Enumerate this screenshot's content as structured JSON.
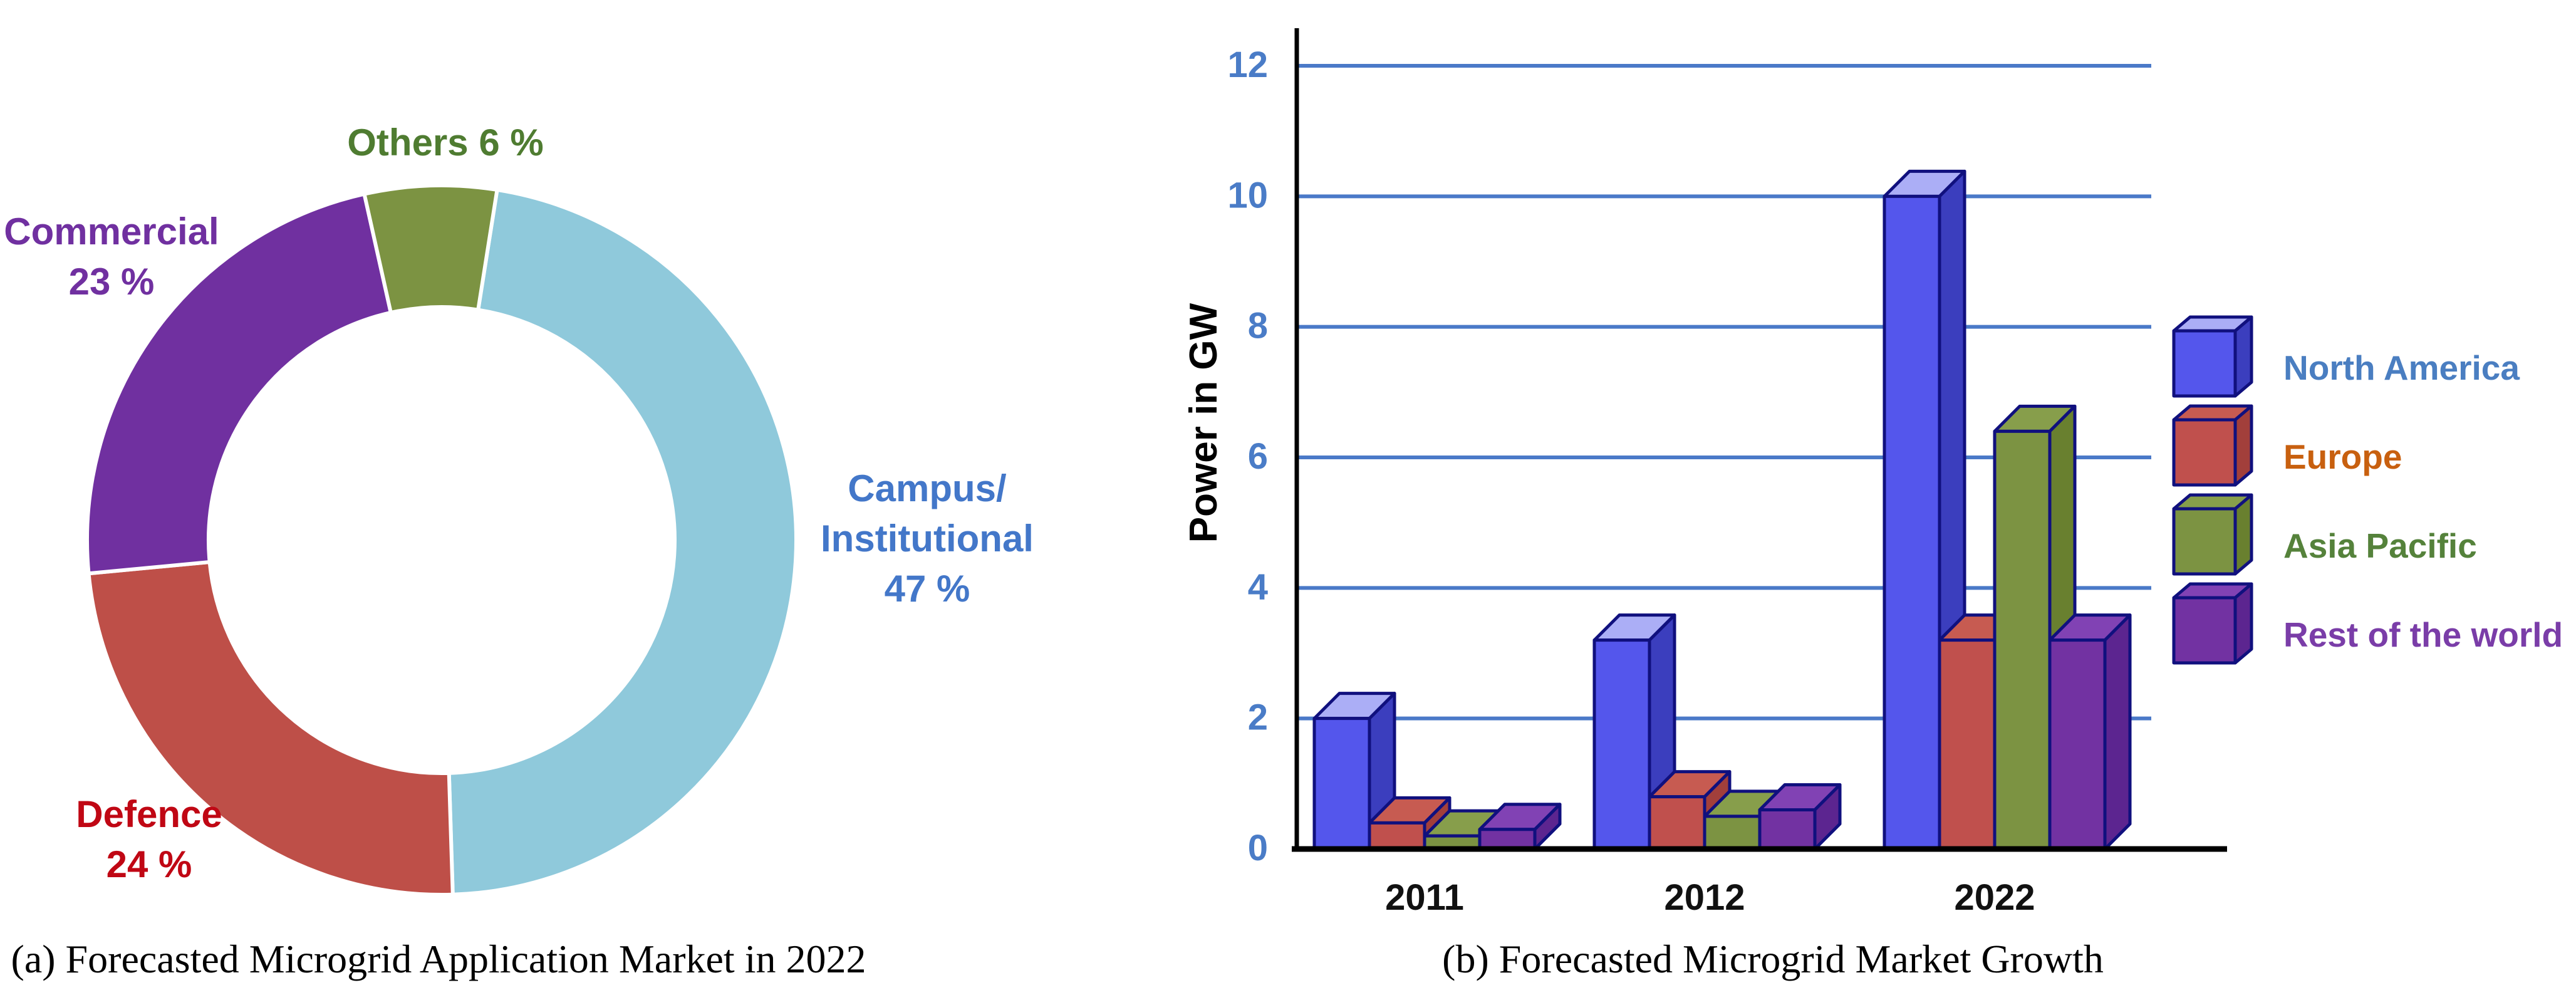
{
  "figure": {
    "captions": {
      "a": "(a) Forecasted Microgrid Application Market in 2022",
      "b": "(b) Forecasted Microgrid Market Growth"
    }
  },
  "chart_data": [
    {
      "type": "pie",
      "subtype": "donut",
      "caption": "(a) Forecasted Microgrid Application Market in 2022",
      "start_angle_deg": 9,
      "clockwise": true,
      "separator_color": "#ffffff",
      "slices": [
        {
          "name": "Campus/Institutional",
          "value": 47,
          "label_lines": [
            "Campus/",
            "Institutional",
            "47 %"
          ],
          "color": "#8FC9DB",
          "label_color": "#4377C9"
        },
        {
          "name": "Defence",
          "value": 24,
          "label_lines": [
            "Defence",
            "24 %"
          ],
          "color": "#BE4F48",
          "label_color": "#C00714"
        },
        {
          "name": "Commercial",
          "value": 23,
          "label_lines": [
            "Commercial",
            "23 %"
          ],
          "color": "#7030A0",
          "label_color": "#7030A0"
        },
        {
          "name": "Others",
          "value": 6,
          "label_lines": [
            "Others 6 %"
          ],
          "color": "#7C9342",
          "label_color": "#4F7C31"
        }
      ]
    },
    {
      "type": "bar",
      "subtype": "3d-clustered-column",
      "caption": "(b) Forecasted Microgrid Market Growth",
      "categories": [
        "2011",
        "2012",
        "2022"
      ],
      "series": [
        {
          "name": "North America",
          "values": [
            2.0,
            3.2,
            10.0
          ],
          "front": "#5456EC",
          "top": "#ABAEF6",
          "side": "#3B3EBE",
          "text_color": "#4A7EC1"
        },
        {
          "name": "Europe",
          "values": [
            0.4,
            0.8,
            3.2
          ],
          "front": "#C0504D",
          "top": "#C75B51",
          "side": "#A23F3B",
          "text_color": "#C8600F"
        },
        {
          "name": "Asia Pacific",
          "values": [
            0.2,
            0.5,
            6.4
          ],
          "front": "#7C9342",
          "top": "#879E4B",
          "side": "#69802F",
          "text_color": "#55823B"
        },
        {
          "name": "Rest of the world",
          "values": [
            0.3,
            0.6,
            3.2
          ],
          "front": "#7232A2",
          "top": "#8142B4",
          "side": "#5C2590",
          "text_color": "#7A3DA8"
        }
      ],
      "ylabel": "Power in GW",
      "ylim": [
        0,
        12
      ],
      "yticks": [
        0,
        2,
        4,
        6,
        8,
        10,
        12
      ],
      "grid": true,
      "gridline_color": "#4A79C8",
      "tick_color": "#4A7CC7",
      "axis_color": "#000000",
      "bar_outline": "#10107E",
      "legend_position": "right"
    }
  ]
}
